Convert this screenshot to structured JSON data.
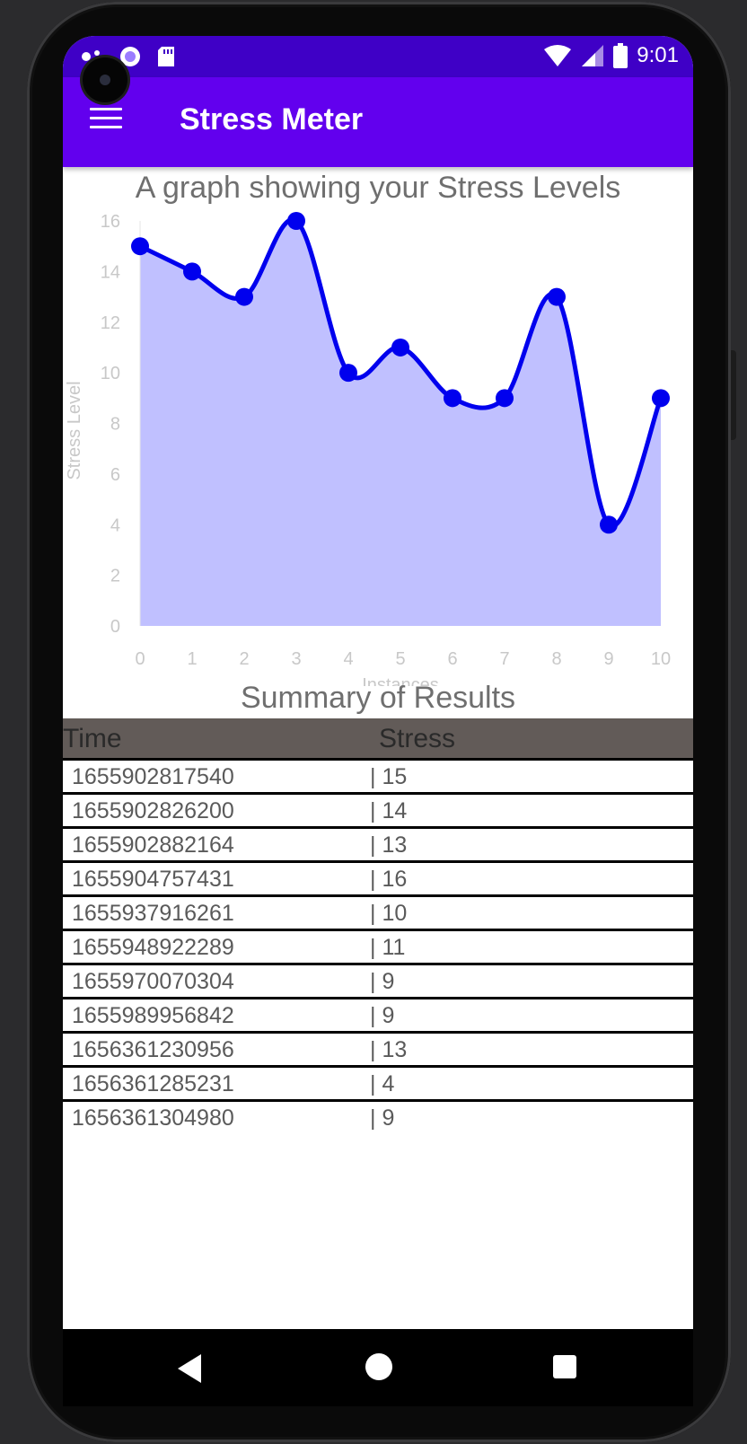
{
  "status_bar": {
    "time": "9:01"
  },
  "app_bar": {
    "title": "Stress Meter"
  },
  "chart_title": "A graph showing your Stress Levels",
  "chart_data": {
    "type": "area",
    "title": "A graph showing your Stress Levels",
    "xlabel": "Instances",
    "ylabel": "Stress Level",
    "x": [
      0,
      1,
      2,
      3,
      4,
      5,
      6,
      7,
      8,
      9,
      10
    ],
    "values": [
      15,
      14,
      13,
      16,
      10,
      11,
      9,
      9,
      13,
      4,
      9
    ],
    "xlim": [
      0,
      10
    ],
    "ylim": [
      0,
      16
    ],
    "y_ticks": [
      0,
      2,
      4,
      6,
      8,
      10,
      12,
      14,
      16
    ],
    "x_ticks": [
      0,
      1,
      2,
      3,
      4,
      5,
      6,
      7,
      8,
      9,
      10
    ],
    "line_color": "#0000ee",
    "fill_color": "#c0c0ff",
    "grid": false
  },
  "summary": {
    "title": "Summary of Results",
    "headers": {
      "time": "Time",
      "stress": "Stress"
    },
    "rows": [
      {
        "time": "1655902817540",
        "stress": "| 15"
      },
      {
        "time": "1655902826200",
        "stress": "| 14"
      },
      {
        "time": "1655902882164",
        "stress": "| 13"
      },
      {
        "time": "1655904757431",
        "stress": "| 16"
      },
      {
        "time": "1655937916261",
        "stress": "| 10"
      },
      {
        "time": "1655948922289",
        "stress": "| 11"
      },
      {
        "time": "1655970070304",
        "stress": "| 9"
      },
      {
        "time": "1655989956842",
        "stress": "| 9"
      },
      {
        "time": "1656361230956",
        "stress": "| 13"
      },
      {
        "time": "1656361285231",
        "stress": "| 4"
      },
      {
        "time": "1656361304980",
        "stress": "| 9"
      }
    ]
  },
  "colors": {
    "app_bar": "#6200ee",
    "status_bar": "#3f00c6",
    "table_header": "#625b58"
  },
  "icons": {
    "menu": "hamburger-menu-icon",
    "back": "back-icon",
    "home": "home-icon",
    "recents": "recents-icon"
  }
}
